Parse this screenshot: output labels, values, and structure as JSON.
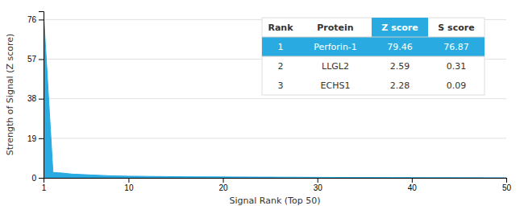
{
  "chart_data": {
    "type": "area",
    "xlabel": "Signal Rank (Top 50)",
    "ylabel": "Strength of Signal (Z score)",
    "x": [
      1,
      2,
      3,
      4,
      5,
      6,
      7,
      8,
      9,
      10,
      11,
      12,
      13,
      14,
      15,
      16,
      17,
      18,
      19,
      20,
      21,
      22,
      23,
      24,
      25,
      26,
      27,
      28,
      29,
      30,
      31,
      32,
      33,
      34,
      35,
      36,
      37,
      38,
      39,
      40,
      41,
      42,
      43,
      44,
      45,
      46,
      47,
      48,
      49,
      50
    ],
    "values": [
      79.46,
      2.59,
      2.28,
      1.8,
      1.6,
      1.4,
      1.2,
      1.0,
      0.9,
      0.8,
      0.75,
      0.7,
      0.65,
      0.6,
      0.55,
      0.52,
      0.5,
      0.48,
      0.46,
      0.44,
      0.42,
      0.4,
      0.38,
      0.36,
      0.34,
      0.32,
      0.3,
      0.28,
      0.26,
      0.24,
      0.22,
      0.2,
      0.19,
      0.18,
      0.17,
      0.16,
      0.15,
      0.14,
      0.13,
      0.12,
      0.11,
      0.1,
      0.09,
      0.08,
      0.07,
      0.06,
      0.05,
      0.04,
      0.03,
      0.02
    ],
    "color": "#29ABE2",
    "xlim": [
      1,
      50
    ],
    "ylim": [
      0,
      80
    ],
    "xticks": [
      1,
      10,
      20,
      30,
      40,
      50
    ],
    "yticks": [
      0,
      19,
      38,
      57,
      76
    ],
    "grid": true,
    "table": {
      "columns": [
        "Rank",
        "Protein",
        "Z score",
        "S score"
      ],
      "rows": [
        [
          "1",
          "Perforin-1",
          "79.46",
          "76.87"
        ],
        [
          "2",
          "LLGL2",
          "2.59",
          "0.31"
        ],
        [
          "3",
          "ECHS1",
          "2.28",
          "0.09"
        ]
      ]
    }
  }
}
